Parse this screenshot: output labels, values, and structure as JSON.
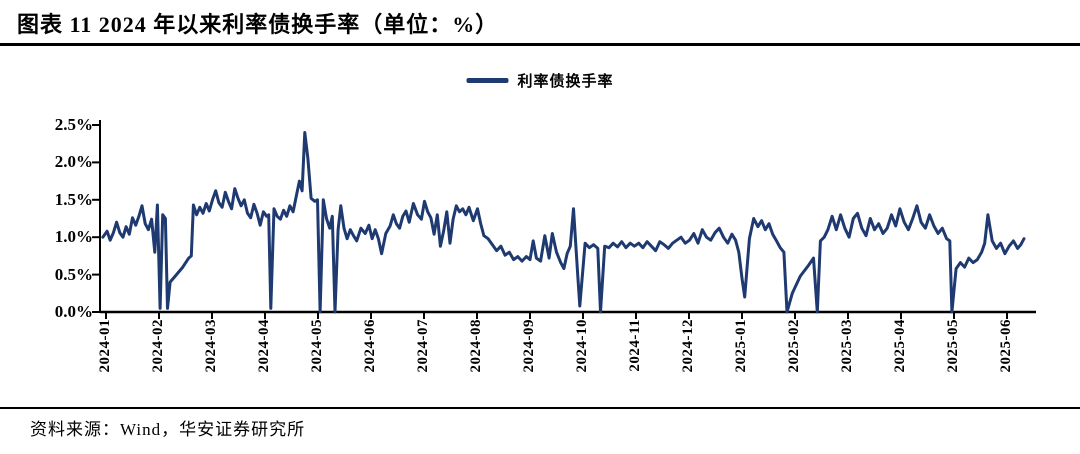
{
  "title": "图表 11 2024 年以来利率债换手率（单位：%）",
  "legend": {
    "label": "利率债换手率"
  },
  "footer": {
    "source": "资料来源：Wind，华安证券研究所"
  },
  "colors": {
    "line": "#1f3a70",
    "axis": "#000000",
    "text": "#000000",
    "background": "#ffffff"
  },
  "chart_data": {
    "type": "line",
    "title": "2024 年以来利率债换手率",
    "unit": "%",
    "legend": [
      "利率债换手率"
    ],
    "legend_position": "top-center",
    "grid": false,
    "x_axis": {
      "categories": [
        "2024-01",
        "2024-02",
        "2024-03",
        "2024-04",
        "2024-05",
        "2024-06",
        "2024-07",
        "2024-08",
        "2024-09",
        "2024-10",
        "2024-11",
        "2024-12",
        "2025-01",
        "2025-02",
        "2025-03",
        "2025-04",
        "2025-05",
        "2025-06"
      ],
      "label_rotation_deg": 90,
      "note": "daily series, monthly ticks"
    },
    "y_axis": {
      "tick_labels": [
        "0.0%",
        "0.5%",
        "1.0%",
        "1.5%",
        "2.0%",
        "2.5%"
      ],
      "min": 0,
      "max": 2.5,
      "step": 0.5
    },
    "series": [
      {
        "name": "利率债换手率",
        "color": "#1f3a70",
        "x_unit": "months since 2024-01 tick",
        "points": [
          [
            -0.06,
            1.0
          ],
          [
            0.02,
            1.08
          ],
          [
            0.08,
            0.96
          ],
          [
            0.14,
            1.06
          ],
          [
            0.2,
            1.2
          ],
          [
            0.26,
            1.06
          ],
          [
            0.32,
            1.0
          ],
          [
            0.38,
            1.14
          ],
          [
            0.44,
            1.04
          ],
          [
            0.5,
            1.26
          ],
          [
            0.56,
            1.16
          ],
          [
            0.62,
            1.28
          ],
          [
            0.68,
            1.42
          ],
          [
            0.74,
            1.18
          ],
          [
            0.8,
            1.1
          ],
          [
            0.86,
            1.24
          ],
          [
            0.92,
            0.8
          ],
          [
            0.97,
            1.43
          ],
          [
            1.02,
            0.05
          ],
          [
            1.07,
            1.3
          ],
          [
            1.12,
            1.25
          ],
          [
            1.16,
            0.05
          ],
          [
            1.21,
            0.4
          ],
          [
            1.33,
            0.5
          ],
          [
            1.45,
            0.6
          ],
          [
            1.56,
            0.72
          ],
          [
            1.61,
            0.75
          ],
          [
            1.65,
            1.43
          ],
          [
            1.71,
            1.3
          ],
          [
            1.77,
            1.4
          ],
          [
            1.83,
            1.32
          ],
          [
            1.89,
            1.45
          ],
          [
            1.95,
            1.35
          ],
          [
            2.01,
            1.5
          ],
          [
            2.07,
            1.62
          ],
          [
            2.13,
            1.46
          ],
          [
            2.19,
            1.4
          ],
          [
            2.25,
            1.6
          ],
          [
            2.31,
            1.48
          ],
          [
            2.37,
            1.38
          ],
          [
            2.43,
            1.65
          ],
          [
            2.49,
            1.52
          ],
          [
            2.55,
            1.42
          ],
          [
            2.61,
            1.5
          ],
          [
            2.67,
            1.32
          ],
          [
            2.73,
            1.26
          ],
          [
            2.79,
            1.44
          ],
          [
            2.85,
            1.32
          ],
          [
            2.91,
            1.16
          ],
          [
            2.97,
            1.34
          ],
          [
            3.03,
            1.28
          ],
          [
            3.07,
            1.3
          ],
          [
            3.11,
            0.05
          ],
          [
            3.17,
            1.38
          ],
          [
            3.23,
            1.28
          ],
          [
            3.29,
            1.24
          ],
          [
            3.35,
            1.36
          ],
          [
            3.41,
            1.28
          ],
          [
            3.47,
            1.42
          ],
          [
            3.53,
            1.34
          ],
          [
            3.59,
            1.55
          ],
          [
            3.65,
            1.75
          ],
          [
            3.7,
            1.62
          ],
          [
            3.75,
            2.4
          ],
          [
            3.81,
            2.05
          ],
          [
            3.87,
            1.52
          ],
          [
            3.94,
            1.48
          ],
          [
            3.99,
            1.5
          ],
          [
            4.04,
            0.0
          ],
          [
            4.1,
            1.5
          ],
          [
            4.16,
            1.25
          ],
          [
            4.22,
            1.12
          ],
          [
            4.27,
            1.28
          ],
          [
            4.32,
            0.0
          ],
          [
            4.38,
            1.1
          ],
          [
            4.43,
            1.42
          ],
          [
            4.49,
            1.12
          ],
          [
            4.55,
            0.98
          ],
          [
            4.61,
            1.1
          ],
          [
            4.67,
            1.02
          ],
          [
            4.73,
            0.95
          ],
          [
            4.81,
            1.12
          ],
          [
            4.89,
            1.05
          ],
          [
            4.96,
            1.16
          ],
          [
            5.02,
            0.98
          ],
          [
            5.08,
            1.1
          ],
          [
            5.14,
            0.98
          ],
          [
            5.2,
            0.78
          ],
          [
            5.28,
            1.05
          ],
          [
            5.36,
            1.15
          ],
          [
            5.42,
            1.3
          ],
          [
            5.48,
            1.18
          ],
          [
            5.54,
            1.12
          ],
          [
            5.6,
            1.28
          ],
          [
            5.66,
            1.35
          ],
          [
            5.72,
            1.2
          ],
          [
            5.8,
            1.45
          ],
          [
            5.88,
            1.3
          ],
          [
            5.95,
            1.24
          ],
          [
            6.01,
            1.48
          ],
          [
            6.07,
            1.34
          ],
          [
            6.13,
            1.26
          ],
          [
            6.19,
            1.04
          ],
          [
            6.25,
            1.3
          ],
          [
            6.31,
            0.88
          ],
          [
            6.37,
            1.08
          ],
          [
            6.43,
            1.34
          ],
          [
            6.49,
            0.92
          ],
          [
            6.55,
            1.24
          ],
          [
            6.61,
            1.42
          ],
          [
            6.67,
            1.34
          ],
          [
            6.73,
            1.38
          ],
          [
            6.79,
            1.3
          ],
          [
            6.85,
            1.4
          ],
          [
            6.93,
            1.22
          ],
          [
            7.01,
            1.38
          ],
          [
            7.07,
            1.18
          ],
          [
            7.13,
            1.02
          ],
          [
            7.21,
            0.98
          ],
          [
            7.29,
            0.9
          ],
          [
            7.37,
            0.82
          ],
          [
            7.45,
            0.88
          ],
          [
            7.53,
            0.76
          ],
          [
            7.61,
            0.8
          ],
          [
            7.69,
            0.7
          ],
          [
            7.77,
            0.74
          ],
          [
            7.85,
            0.68
          ],
          [
            7.93,
            0.74
          ],
          [
            8.0,
            0.7
          ],
          [
            8.06,
            0.95
          ],
          [
            8.12,
            0.72
          ],
          [
            8.2,
            0.68
          ],
          [
            8.28,
            1.02
          ],
          [
            8.36,
            0.72
          ],
          [
            8.42,
            1.05
          ],
          [
            8.5,
            0.8
          ],
          [
            8.58,
            0.66
          ],
          [
            8.64,
            0.58
          ],
          [
            8.7,
            0.78
          ],
          [
            8.76,
            0.88
          ],
          [
            8.82,
            1.38
          ],
          [
            8.9,
            0.5
          ],
          [
            8.94,
            0.08
          ],
          [
            9.04,
            0.92
          ],
          [
            9.12,
            0.86
          ],
          [
            9.2,
            0.9
          ],
          [
            9.28,
            0.85
          ],
          [
            9.33,
            0.0
          ],
          [
            9.41,
            0.88
          ],
          [
            9.49,
            0.86
          ],
          [
            9.57,
            0.92
          ],
          [
            9.65,
            0.87
          ],
          [
            9.73,
            0.94
          ],
          [
            9.81,
            0.86
          ],
          [
            9.89,
            0.92
          ],
          [
            9.97,
            0.88
          ],
          [
            10.05,
            0.92
          ],
          [
            10.13,
            0.86
          ],
          [
            10.21,
            0.94
          ],
          [
            10.29,
            0.88
          ],
          [
            10.37,
            0.82
          ],
          [
            10.45,
            0.94
          ],
          [
            10.53,
            0.9
          ],
          [
            10.61,
            0.85
          ],
          [
            10.69,
            0.92
          ],
          [
            10.77,
            0.96
          ],
          [
            10.85,
            1.0
          ],
          [
            10.93,
            0.92
          ],
          [
            11.01,
            0.96
          ],
          [
            11.09,
            1.05
          ],
          [
            11.17,
            0.92
          ],
          [
            11.25,
            1.1
          ],
          [
            11.33,
            1.0
          ],
          [
            11.41,
            0.96
          ],
          [
            11.49,
            1.06
          ],
          [
            11.57,
            1.12
          ],
          [
            11.65,
            1.0
          ],
          [
            11.73,
            0.92
          ],
          [
            11.81,
            1.04
          ],
          [
            11.88,
            0.96
          ],
          [
            11.94,
            0.8
          ],
          [
            12.0,
            0.45
          ],
          [
            12.05,
            0.2
          ],
          [
            12.14,
            0.98
          ],
          [
            12.22,
            1.25
          ],
          [
            12.3,
            1.14
          ],
          [
            12.37,
            1.22
          ],
          [
            12.44,
            1.1
          ],
          [
            12.51,
            1.18
          ],
          [
            12.58,
            1.04
          ],
          [
            12.65,
            0.95
          ],
          [
            12.72,
            0.86
          ],
          [
            12.79,
            0.8
          ],
          [
            12.85,
            0.0
          ],
          [
            12.95,
            0.25
          ],
          [
            13.1,
            0.48
          ],
          [
            13.25,
            0.62
          ],
          [
            13.35,
            0.72
          ],
          [
            13.42,
            0.0
          ],
          [
            13.48,
            0.95
          ],
          [
            13.55,
            1.0
          ],
          [
            13.62,
            1.1
          ],
          [
            13.7,
            1.28
          ],
          [
            13.78,
            1.1
          ],
          [
            13.86,
            1.3
          ],
          [
            13.94,
            1.12
          ],
          [
            14.02,
            1.0
          ],
          [
            14.1,
            1.25
          ],
          [
            14.18,
            1.32
          ],
          [
            14.26,
            1.12
          ],
          [
            14.34,
            1.02
          ],
          [
            14.42,
            1.25
          ],
          [
            14.5,
            1.1
          ],
          [
            14.58,
            1.18
          ],
          [
            14.66,
            1.05
          ],
          [
            14.74,
            1.12
          ],
          [
            14.82,
            1.3
          ],
          [
            14.9,
            1.15
          ],
          [
            14.98,
            1.38
          ],
          [
            15.06,
            1.2
          ],
          [
            15.14,
            1.1
          ],
          [
            15.22,
            1.25
          ],
          [
            15.3,
            1.42
          ],
          [
            15.38,
            1.2
          ],
          [
            15.46,
            1.12
          ],
          [
            15.54,
            1.3
          ],
          [
            15.62,
            1.15
          ],
          [
            15.7,
            1.05
          ],
          [
            15.78,
            1.12
          ],
          [
            15.86,
            0.98
          ],
          [
            15.92,
            0.95
          ],
          [
            15.96,
            0.0
          ],
          [
            16.04,
            0.58
          ],
          [
            16.12,
            0.66
          ],
          [
            16.2,
            0.6
          ],
          [
            16.28,
            0.72
          ],
          [
            16.36,
            0.66
          ],
          [
            16.44,
            0.7
          ],
          [
            16.52,
            0.8
          ],
          [
            16.58,
            0.92
          ],
          [
            16.64,
            1.3
          ],
          [
            16.72,
            0.95
          ],
          [
            16.8,
            0.85
          ],
          [
            16.88,
            0.92
          ],
          [
            16.96,
            0.78
          ],
          [
            17.04,
            0.88
          ],
          [
            17.12,
            0.95
          ],
          [
            17.2,
            0.85
          ],
          [
            17.26,
            0.9
          ],
          [
            17.32,
            0.98
          ]
        ]
      }
    ]
  }
}
